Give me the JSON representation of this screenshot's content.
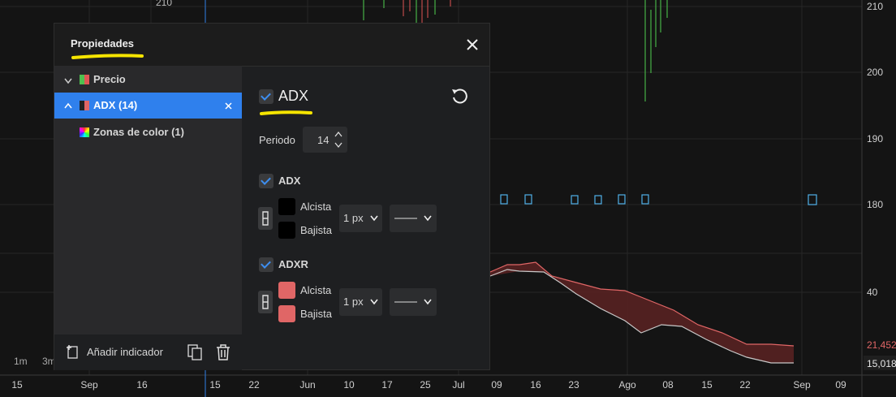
{
  "chart_background": {
    "top_left_label": "210",
    "price_axis_labels": [
      "210",
      "200",
      "190",
      "180",
      "40"
    ],
    "last_value_labels": [
      "21,452",
      "15,018"
    ],
    "time_axis_labels": [
      "15",
      "Sep",
      "16",
      "15",
      "22",
      "Jun",
      "10",
      "17",
      "25",
      "Jul",
      "09",
      "16",
      "23",
      "Ago",
      "08",
      "15",
      "22",
      "Sep",
      "09"
    ],
    "timeframes": [
      "1m",
      "3m"
    ]
  },
  "dialog": {
    "title": "Propiedades",
    "tree": [
      {
        "label": "Precio"
      },
      {
        "label": "ADX (14)"
      },
      {
        "label": "Zonas de color (1)"
      }
    ],
    "add_indicator": "Añadir indicador",
    "indicator_name": "ADX",
    "period": {
      "label": "Periodo",
      "value": "14"
    },
    "plots": [
      {
        "name": "ADX",
        "rising_label": "Alcista",
        "falling_label": "Bajista",
        "width": "1 px"
      },
      {
        "name": "ADXR",
        "rising_label": "Alcista",
        "falling_label": "Bajista",
        "width": "1 px"
      }
    ]
  }
}
